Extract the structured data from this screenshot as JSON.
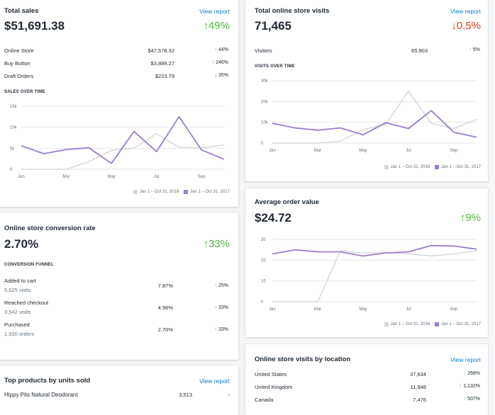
{
  "colors": {
    "current": "#9c7cce",
    "previous": "#d5d9de",
    "grid": "#e4e7ea",
    "up": "#50b83c",
    "down": "#de3618",
    "link": "#007ace"
  },
  "total_sales": {
    "title": "Total sales",
    "link": "View report",
    "value": "$51,691.38",
    "delta": "49%",
    "delta_dir": "up",
    "rows": [
      {
        "label": "Online Store",
        "amount": "$47,578.32",
        "change": "44%",
        "dir": "up"
      },
      {
        "label": "Buy Button",
        "amount": "$3,889.27",
        "change": "246%",
        "dir": "up"
      },
      {
        "label": "Draft Orders",
        "amount": "$223.79",
        "change": "35%",
        "dir": "down"
      }
    ],
    "chart_title": "SALES OVER TIME"
  },
  "online_visits": {
    "title": "Total online store visits",
    "link": "View report",
    "value": "71,465",
    "delta": "0.5%",
    "delta_dir": "down",
    "rows": [
      {
        "label": "Visitors",
        "amount": "65,903",
        "change": "5%",
        "dir": "up"
      }
    ],
    "chart_title": "VISITS OVER TIME"
  },
  "conversion": {
    "title": "Online store conversion rate",
    "value": "2.70%",
    "delta": "33%",
    "delta_dir": "up",
    "funnel_title": "CONVERSION FUNNEL",
    "rows": [
      {
        "label": "Added to cart",
        "sub": "5,625 visits",
        "rate": "7.87%",
        "change": "25%"
      },
      {
        "label": "Reached checkout",
        "sub": "3,542 visits",
        "rate": "4.96%",
        "change": "33%"
      },
      {
        "label": "Purchased",
        "sub": "1,930 orders",
        "rate": "2.70%",
        "change": "33%"
      }
    ]
  },
  "aov": {
    "title": "Average order value",
    "value": "$24.72",
    "delta": "9%",
    "delta_dir": "up"
  },
  "top_products": {
    "title": "Top products by units sold",
    "link": "View report",
    "rows": [
      {
        "label": "Hippy Pits Natural Deodorant",
        "units": "3,513",
        "change": "-"
      }
    ]
  },
  "visits_location": {
    "title": "Online store visits by location",
    "link": "View report",
    "rows": [
      {
        "label": "United States",
        "amount": "37,634",
        "change": "268%"
      },
      {
        "label": "United Kingdom",
        "amount": "11,948",
        "change": "1,132%"
      },
      {
        "label": "Canada",
        "amount": "7,476",
        "change": "507%"
      }
    ]
  },
  "chart_data": [
    {
      "type": "line",
      "title": "SALES OVER TIME",
      "ylim": [
        0,
        15000
      ],
      "yticks": [
        "0",
        "5k",
        "10k",
        "15k"
      ],
      "x_labels": [
        "Jan",
        "Mar",
        "May",
        "Jul",
        "Sep"
      ],
      "legend": [
        "Jan 1 – Oct 31, 2016",
        "Jan 1 – Oct 31, 2017"
      ],
      "series": [
        {
          "name": "Jan 1 – Oct 31, 2016",
          "values": [
            0,
            0,
            0,
            1800,
            4500,
            5000,
            8500,
            5200,
            5100,
            5800
          ]
        },
        {
          "name": "Jan 1 – Oct 31, 2017",
          "values": [
            5600,
            3700,
            4700,
            5100,
            1400,
            9000,
            4200,
            12500,
            4600,
            2400
          ]
        }
      ]
    },
    {
      "type": "line",
      "title": "VISITS OVER TIME",
      "ylim": [
        0,
        30000
      ],
      "yticks": [
        "0",
        "10k",
        "20k",
        "30k"
      ],
      "x_labels": [
        "Jan",
        "Mar",
        "May",
        "Jul",
        "Sep"
      ],
      "legend": [
        "Jan 1 – Oct 31, 2016",
        "Jan 1 – Oct 31, 2017"
      ],
      "series": [
        {
          "name": "Jan 1 – Oct 31, 2016",
          "values": [
            0,
            0,
            0,
            800,
            6500,
            9000,
            25000,
            9500,
            7000,
            11500
          ]
        },
        {
          "name": "Jan 1 – Oct 31, 2017",
          "values": [
            9500,
            7300,
            6200,
            7300,
            4000,
            9800,
            7000,
            15600,
            5200,
            2800
          ]
        }
      ]
    },
    {
      "type": "line",
      "title": "Average order value",
      "ylim": [
        0,
        30
      ],
      "yticks": [
        "0",
        "10",
        "20",
        "30"
      ],
      "x_labels": [
        "Jan",
        "Mar",
        "May",
        "Jul",
        "Sep"
      ],
      "legend": [
        "Jan 1 – Oct 31, 2016",
        "Jan 1 – Oct 31, 2017"
      ],
      "series": [
        {
          "name": "Jan 1 – Oct 31, 2016",
          "values": [
            0,
            0,
            0,
            24.5,
            23.5,
            23.5,
            23,
            22,
            23,
            24.5
          ]
        },
        {
          "name": "Jan 1 – Oct 31, 2017",
          "values": [
            23,
            25,
            24,
            24,
            22,
            23.5,
            24,
            27,
            26.8,
            25.3
          ]
        }
      ]
    }
  ]
}
